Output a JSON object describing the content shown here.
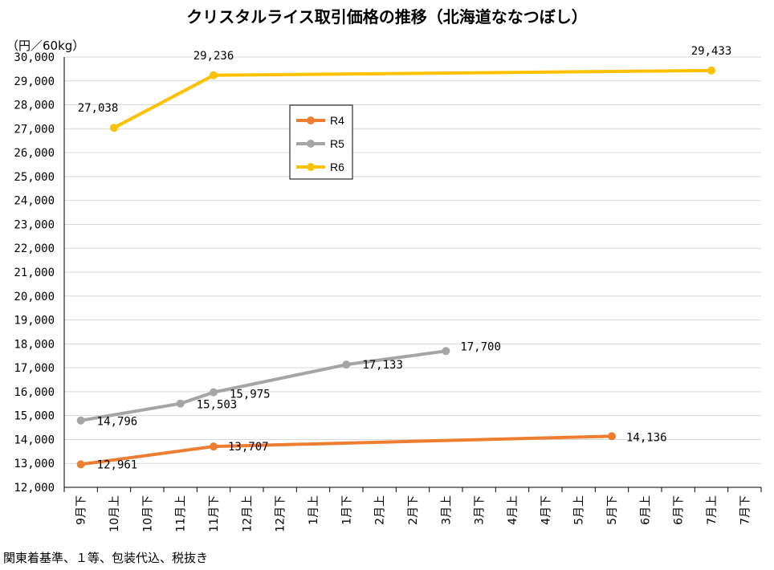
{
  "page_title": "クリスタルライス取引価格の推移（北海道ななつぼし）",
  "footnote": "関東着基準、１等、包装代込、税抜き",
  "chart_data": {
    "type": "line",
    "title": "クリスタルライス取引価格の推移（北海道ななつぼし）",
    "ylabel": "（円／60kg）",
    "xlabel": "",
    "ylim": [
      12000,
      30000
    ],
    "ytick_step": 1000,
    "yticks": [
      "12,000",
      "13,000",
      "14,000",
      "15,000",
      "16,000",
      "17,000",
      "18,000",
      "19,000",
      "20,000",
      "21,000",
      "22,000",
      "23,000",
      "24,000",
      "25,000",
      "26,000",
      "27,000",
      "28,000",
      "29,000",
      "30,000"
    ],
    "categories": [
      "9月下",
      "10月上",
      "10月下",
      "11月上",
      "11月下",
      "12月上",
      "12月下",
      "1月上",
      "1月下",
      "2月上",
      "2月下",
      "3月上",
      "3月下",
      "4月上",
      "4月下",
      "5月上",
      "5月下",
      "6月上",
      "6月下",
      "7月上",
      "7月下"
    ],
    "grid": true,
    "legend_position": "upper-middle",
    "series": [
      {
        "name": "R4",
        "color": "#ED7D31",
        "points": [
          {
            "x": "9月下",
            "y": 12961,
            "label": "12,961"
          },
          {
            "x": "11月下",
            "y": 13707,
            "label": "13,707"
          },
          {
            "x": "5月下",
            "y": 14136,
            "label": "14,136"
          }
        ]
      },
      {
        "name": "R5",
        "color": "#A5A5A5",
        "points": [
          {
            "x": "9月下",
            "y": 14796,
            "label": "14,796"
          },
          {
            "x": "11月上",
            "y": 15503,
            "label": "15,503"
          },
          {
            "x": "11月下",
            "y": 15975,
            "label": "15,975"
          },
          {
            "x": "1月下",
            "y": 17133,
            "label": "17,133"
          },
          {
            "x": "3月上",
            "y": 17700,
            "label": "17,700"
          }
        ]
      },
      {
        "name": "R6",
        "color": "#FFC000",
        "points": [
          {
            "x": "10月上",
            "y": 27038,
            "label": "27,038"
          },
          {
            "x": "11月下",
            "y": 29236,
            "label": "29,236"
          },
          {
            "x": "7月上",
            "y": 29433,
            "label": "29,433"
          }
        ]
      }
    ]
  }
}
